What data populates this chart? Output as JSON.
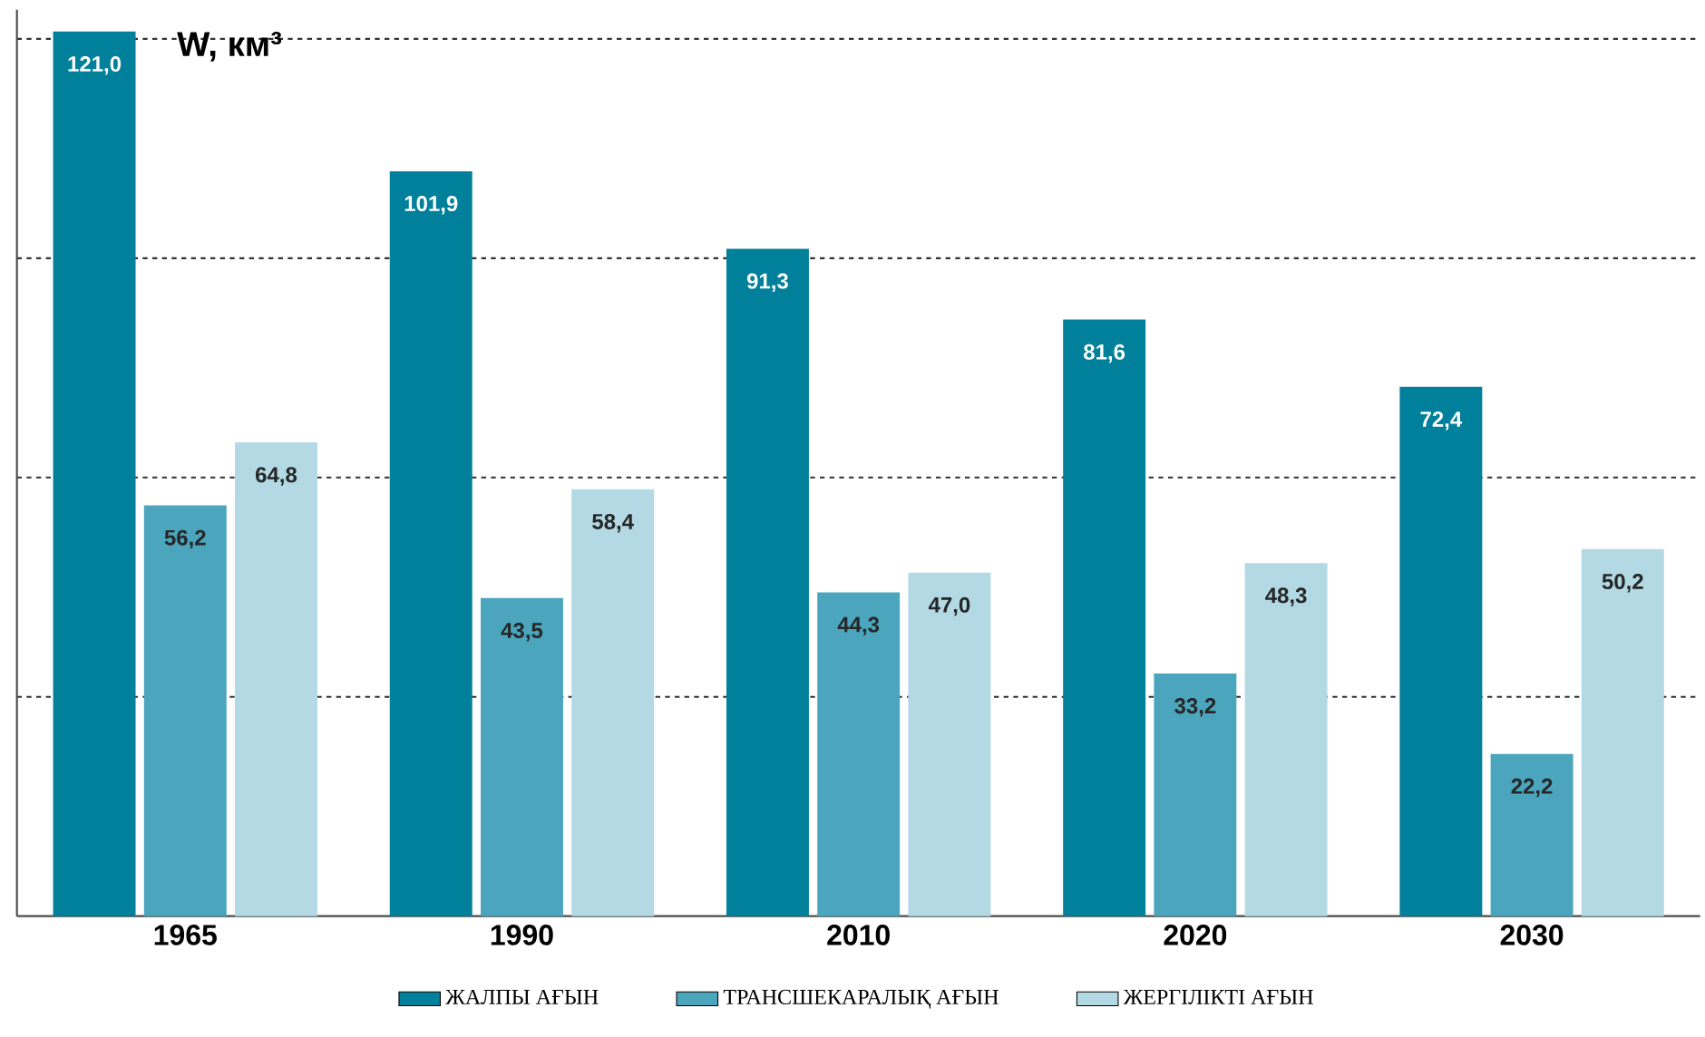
{
  "chart_data": {
    "type": "bar",
    "ylabel": "W, км³",
    "categories": [
      "1965",
      "1990",
      "2010",
      "2020",
      "2030"
    ],
    "series": [
      {
        "name": "ЖАЛПЫ АҒЫН",
        "color": "#00809a",
        "values": [
          121.0,
          101.9,
          91.3,
          81.6,
          72.4
        ],
        "value_labels": [
          "121,0",
          "101,9",
          "91,3",
          "81,6",
          "72,4"
        ]
      },
      {
        "name": "ТРАНСШЕКАРАЛЫҚ АҒЫН",
        "color": "#4aa5bd",
        "values": [
          56.2,
          43.5,
          44.3,
          33.2,
          22.2
        ],
        "value_labels": [
          "56,2",
          "43,5",
          "44,3",
          "33,2",
          "22,2"
        ]
      },
      {
        "name": "ЖЕРГІЛІКТІ АҒЫН",
        "color": "#b2d9e4",
        "values": [
          64.8,
          58.4,
          47.0,
          48.3,
          50.2
        ],
        "value_labels": [
          "64,8",
          "58,4",
          "47,0",
          "48,3",
          "50,2"
        ]
      }
    ],
    "ylim": [
      0,
      124
    ],
    "yticks": [
      {
        "value": 30,
        "label": null
      },
      {
        "value": 60,
        "label": null
      },
      {
        "value": 90,
        "label": null
      },
      {
        "value": 120,
        "label": null
      }
    ],
    "tick_labels": "x",
    "grid": "y",
    "legend": "bottom"
  }
}
